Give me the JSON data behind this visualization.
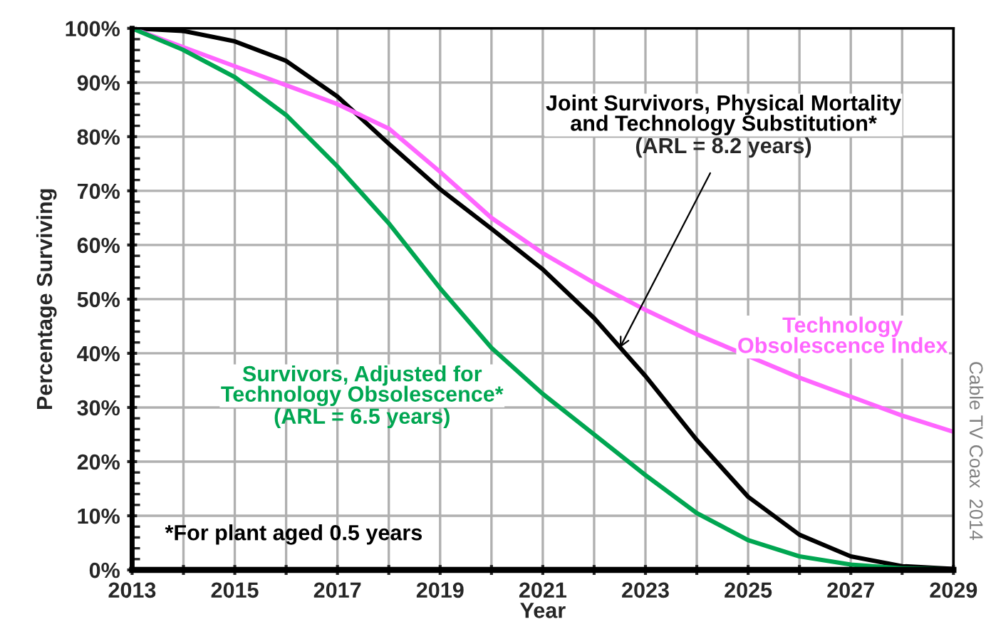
{
  "chart_data": {
    "type": "line",
    "xlabel": "Year",
    "ylabel": "Percentage Surviving",
    "x": [
      2013,
      2014,
      2015,
      2016,
      2017,
      2018,
      2019,
      2020,
      2021,
      2022,
      2023,
      2024,
      2025,
      2026,
      2027,
      2028,
      2029
    ],
    "series": [
      {
        "name": "Joint Survivors, Physical Mortality\nand Technology Substitution*",
        "color": "#000000",
        "values": [
          100,
          99.5,
          97.6,
          94,
          87.4,
          78.7,
          70.3,
          63,
          55.5,
          46.5,
          35.8,
          24,
          13.5,
          6.5,
          2.5,
          0.7,
          0.2
        ]
      },
      {
        "name": "Technology\nObsolescence Index",
        "color": "#ff66ff",
        "values": [
          100,
          96.5,
          93,
          89.5,
          86,
          81.5,
          73.5,
          65,
          58.5,
          53,
          48,
          43.5,
          39.5,
          35.5,
          32,
          28.5,
          25.5
        ]
      },
      {
        "name": "Survivors, Adjusted for\nTechnology Obsolescence*",
        "color": "#00a651",
        "values": [
          100,
          96,
          91,
          84,
          74.5,
          64,
          52,
          41,
          32.5,
          25,
          17.5,
          10.5,
          5.5,
          2.5,
          1,
          0.3,
          0.1
        ]
      }
    ],
    "xlim": [
      2013,
      2029
    ],
    "xticks": [
      2013,
      {
        "value": 2014,
        "label": null
      },
      2015,
      {
        "value": 2016,
        "label": null
      },
      2017,
      {
        "value": 2018,
        "label": null
      },
      2019,
      {
        "value": 2020,
        "label": null
      },
      2021,
      {
        "value": 2022,
        "label": null
      },
      2023,
      {
        "value": 2024,
        "label": null
      },
      2025,
      {
        "value": 2026,
        "label": null
      },
      2027,
      {
        "value": 2028,
        "label": null
      },
      2029
    ],
    "ylim": [
      0,
      100
    ],
    "yticks": [
      {
        "value": 0,
        "label": "0%"
      },
      {
        "value": 10,
        "label": "10%"
      },
      {
        "value": 20,
        "label": "20%"
      },
      {
        "value": 30,
        "label": "30%"
      },
      {
        "value": 40,
        "label": "40%"
      },
      {
        "value": 50,
        "label": "50%"
      },
      {
        "value": 60,
        "label": "60%"
      },
      {
        "value": 70,
        "label": "70%"
      },
      {
        "value": 80,
        "label": "80%"
      },
      {
        "value": 90,
        "label": "90%"
      },
      {
        "value": 100,
        "label": "100%"
      }
    ],
    "grid": true,
    "legend": false,
    "marker": "none",
    "line_style": "solid",
    "annotations": [
      {
        "text": "(ARL = 8.2 years)",
        "x": 2022.5,
        "y": 41
      },
      "(ARL = 6.5 years)",
      "*For plant aged 0.5 years",
      "Cable TV Coax  2014"
    ]
  }
}
